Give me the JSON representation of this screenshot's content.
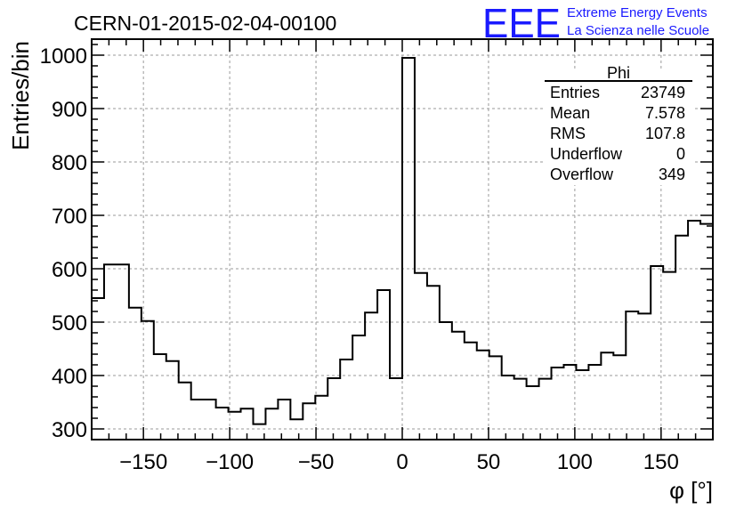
{
  "chart_data": {
    "type": "histogram",
    "title": "CERN-01-2015-02-04-00100",
    "ylabel": "Entries/bin",
    "xlabel": "φ [°]",
    "xlim": [
      -180,
      180
    ],
    "ylim": [
      280,
      1030
    ],
    "bin_width": 7.2,
    "x_ticks": [
      -150,
      -100,
      -50,
      0,
      50,
      100,
      150
    ],
    "x_tick_labels": [
      "−150",
      "−100",
      "−50",
      "0",
      "50",
      "100",
      "150"
    ],
    "y_ticks": [
      300,
      400,
      500,
      600,
      700,
      800,
      900,
      1000
    ],
    "y_tick_labels": [
      "300",
      "400",
      "500",
      "600",
      "700",
      "800",
      "900",
      "1000"
    ],
    "grid": true,
    "values": [
      545,
      608,
      608,
      527,
      502,
      440,
      427,
      387,
      355,
      355,
      340,
      332,
      338,
      309,
      338,
      355,
      318,
      348,
      362,
      395,
      430,
      475,
      518,
      560,
      395,
      995,
      592,
      568,
      500,
      482,
      462,
      447,
      436,
      400,
      394,
      380,
      394,
      415,
      420,
      410,
      420,
      443,
      438,
      520,
      516,
      605,
      594,
      662,
      690,
      684
    ],
    "stats_box": {
      "title": "Phi",
      "rows": [
        {
          "label": "Entries",
          "value": "23749"
        },
        {
          "label": "Mean",
          "value": "7.578"
        },
        {
          "label": "RMS",
          "value": "107.8"
        },
        {
          "label": "Underflow",
          "value": "0"
        },
        {
          "label": "Overflow",
          "value": "349"
        }
      ]
    },
    "logo": {
      "mark": "EEE",
      "line1": "Extreme Energy Events",
      "line2": "La Scienza nelle Scuole",
      "color": "#1a1aff"
    }
  }
}
